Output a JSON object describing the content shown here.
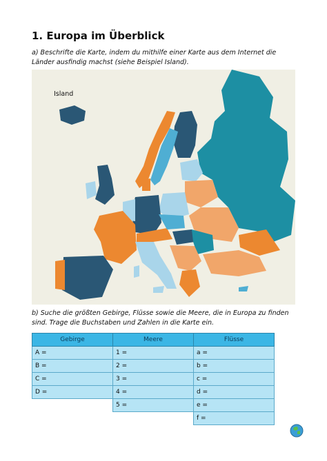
{
  "title": "1. Europa im Überblick",
  "instruction_a": "a) Beschrifte die Karte, indem du mithilfe einer Karte aus dem Internet die Länder ausfindig machst (siehe Beispiel Island).",
  "map": {
    "label_island": "Island",
    "colors": {
      "background": "#f0efe4",
      "teal": "#1d8fa3",
      "dark_blue": "#2a5775",
      "orange": "#ec8830",
      "light_orange": "#f1a66a",
      "light_blue": "#a9d5ea",
      "mid_blue": "#4faed3"
    }
  },
  "instruction_b": "b) Suche die größten Gebirge, Flüsse sowie die Meere, die in Europa zu finden sind. Trage die Buchstaben und Zahlen in die Karte ein.",
  "table": {
    "headers": [
      "Gebirge",
      "Meere",
      "Flüsse"
    ],
    "gebirge": [
      "A =",
      "B =",
      "C =",
      "D ="
    ],
    "meere": [
      "1 =",
      "2 =",
      "3 =",
      "4 =",
      "5 ="
    ],
    "fluesse": [
      "a =",
      "b =",
      "c =",
      "d =",
      "e =",
      "f ="
    ]
  }
}
